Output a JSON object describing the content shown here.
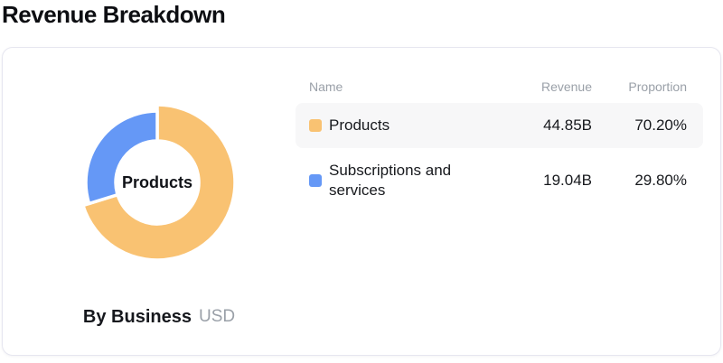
{
  "page": {
    "title": "Revenue Breakdown"
  },
  "card": {
    "caption": {
      "label": "By Business",
      "unit": "USD"
    }
  },
  "table": {
    "headers": {
      "name": "Name",
      "revenue": "Revenue",
      "proportion": "Proportion"
    },
    "rows": [
      {
        "name": "Products",
        "revenue": "44.85B",
        "proportion": "70.20%",
        "color": "#F9C272",
        "highlighted": true
      },
      {
        "name": "Subscriptions and services",
        "revenue": "19.04B",
        "proportion": "29.80%",
        "color": "#6598F6",
        "highlighted": false
      }
    ]
  },
  "chart_data": {
    "type": "pie",
    "subtype": "donut",
    "title": "Revenue Breakdown",
    "caption": "By Business",
    "unit": "USD",
    "center_label": "Products",
    "categories": [
      "Products",
      "Subscriptions and services"
    ],
    "values_billions": [
      44.85,
      19.04
    ],
    "value_labels": [
      "44.85B",
      "19.04B"
    ],
    "proportions_percent": [
      70.2,
      29.8
    ],
    "proportion_labels": [
      "70.20%",
      "29.80%"
    ],
    "colors": [
      "#F9C272",
      "#6598F6"
    ],
    "highlighted_index": 0,
    "start_angle_deg": 0,
    "direction": "clockwise",
    "legend_position": "right-table",
    "segment_gap_color": "#ffffff",
    "row_highlight_color": "#f7f7f8"
  }
}
